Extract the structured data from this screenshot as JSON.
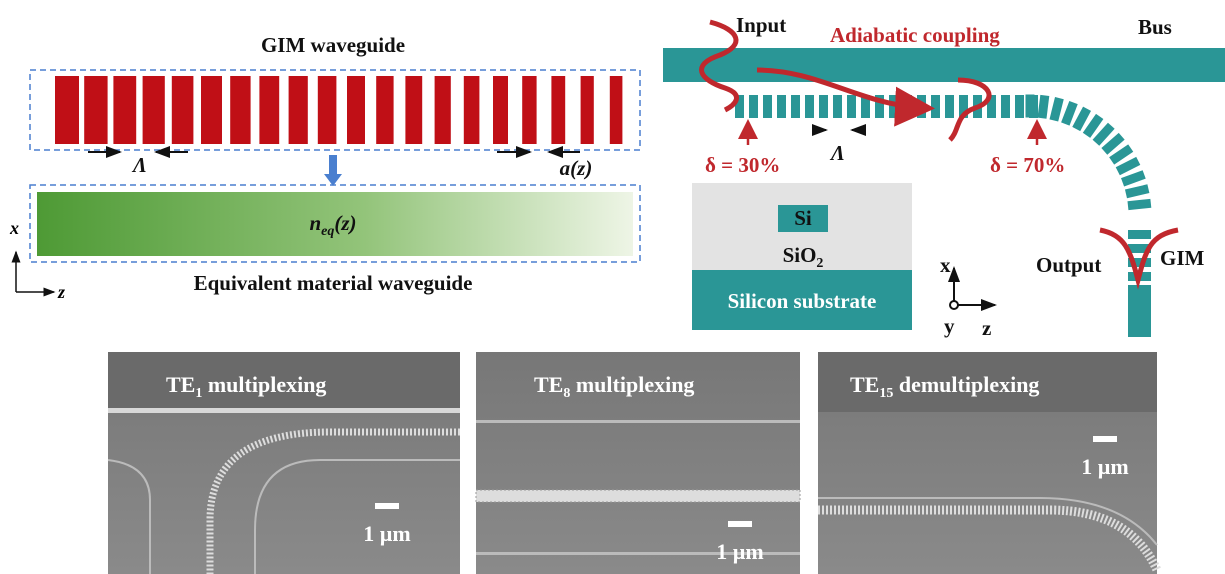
{
  "left": {
    "top_label": "GIM waveguide",
    "period_label": "Λ",
    "width_label": "a(z)",
    "neq": {
      "main": "n",
      "sub": "eq",
      "rest": "(z)"
    },
    "bottom_label": "Equivalent material waveguide",
    "axis_x": "x",
    "axis_z": "z"
  },
  "right": {
    "input": "Input",
    "coupling": "Adiabatic coupling",
    "bus": "Bus",
    "delta1": "δ = 30%",
    "period_label": "Λ",
    "delta2": "δ = 70%",
    "si": "Si",
    "sio2": {
      "main": "SiO",
      "sub": "2"
    },
    "substrate": "Silicon substrate",
    "output": "Output",
    "gim": "GIM",
    "axis_x": "x",
    "axis_y": "y",
    "axis_z": "z"
  },
  "sem": [
    {
      "title": {
        "main": "TE",
        "sub": "1",
        "rest": " multiplexing"
      },
      "scale": "1 µm"
    },
    {
      "title": {
        "main": "TE",
        "sub": "8",
        "rest": " multiplexing"
      },
      "scale": "1 µm"
    },
    {
      "title": {
        "main": "TE",
        "sub": "15",
        "rest": " demultiplexing"
      },
      "scale": "1 µm"
    }
  ]
}
